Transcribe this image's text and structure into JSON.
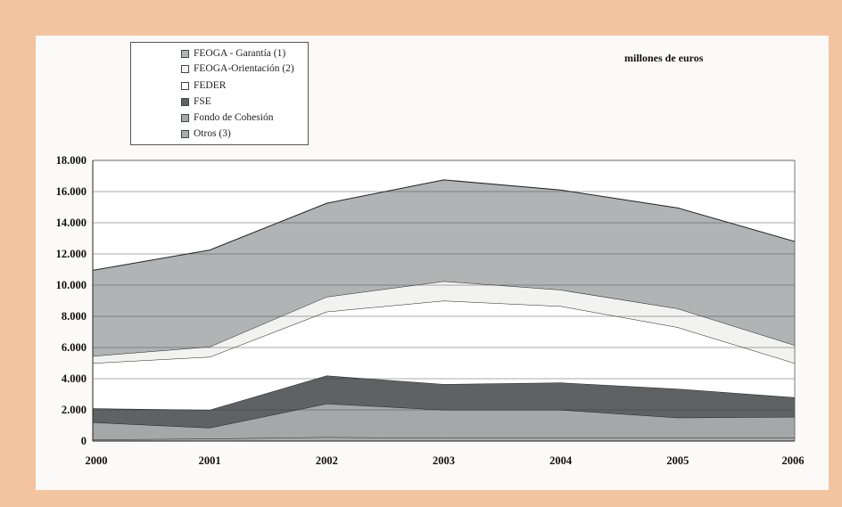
{
  "chart_data": {
    "type": "area",
    "stacked": true,
    "units_label": "millones de euros",
    "x": [
      "2000",
      "2001",
      "2002",
      "2003",
      "2004",
      "2005",
      "2006"
    ],
    "ylim": [
      0,
      18000
    ],
    "y_ticks": [
      "0",
      "2.000",
      "4.000",
      "6.000",
      "8.000",
      "10.000",
      "12.000",
      "14.000",
      "16.000",
      "18.000"
    ],
    "grid": true,
    "legend_position": "top-left",
    "series": [
      {
        "name": "Otros (3)",
        "color": "#a9acad",
        "values": [
          100,
          150,
          250,
          200,
          200,
          200,
          200
        ]
      },
      {
        "name": "Fondo de Cohesión",
        "color": "#a5a8a9",
        "values": [
          1100,
          700,
          2150,
          1800,
          1800,
          1300,
          1350
        ]
      },
      {
        "name": "FSE",
        "color": "#5f6263",
        "values": [
          900,
          1150,
          1800,
          1650,
          1750,
          1850,
          1250
        ]
      },
      {
        "name": "FEDER",
        "color": "#ffffff",
        "values": [
          2900,
          3400,
          4100,
          5350,
          4900,
          3950,
          2200
        ]
      },
      {
        "name": "FEOGA-Orientación (2)",
        "color": "#f2f2f0",
        "values": [
          450,
          650,
          950,
          1250,
          1050,
          1200,
          1150
        ]
      },
      {
        "name": "FEOGA - Garantía (1)",
        "color": "#b1b4b5",
        "values": [
          5500,
          6200,
          6000,
          6500,
          6400,
          6450,
          6650
        ]
      }
    ],
    "legend_order": [
      "FEOGA - Garantía (1)",
      "FEOGA-Orientación (2)",
      "FEDER",
      "FSE",
      "Fondo de Cohesión",
      "Otros (3)"
    ]
  }
}
